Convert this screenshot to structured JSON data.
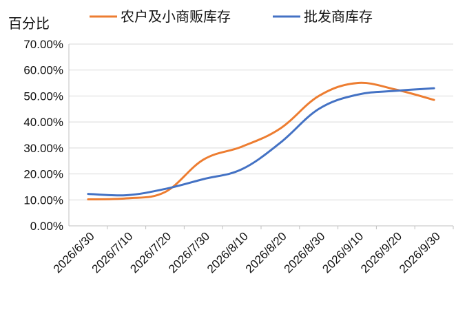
{
  "chart_data": {
    "type": "line",
    "ylabel": "百分比",
    "ylim": [
      0,
      70
    ],
    "y_tick_labels": [
      "0.00%",
      "10.00%",
      "20.00%",
      "30.00%",
      "40.00%",
      "50.00%",
      "60.00%",
      "70.00%"
    ],
    "x": [
      "2026/6/30",
      "2026/7/10",
      "2026/7/20",
      "2026/7/30",
      "2026/8/10",
      "2026/8/20",
      "2026/8/30",
      "2026/9/10",
      "2026/9/20",
      "2026/9/30"
    ],
    "legend_position": "top",
    "grid": true,
    "series": [
      {
        "name": "农户及小商贩库存",
        "color": "#ED7D31",
        "values": [
          10.2,
          10.6,
          13.0,
          25.5,
          30.5,
          37.5,
          50.0,
          55.0,
          52.5,
          48.5
        ]
      },
      {
        "name": "批发商库存",
        "color": "#4472C4",
        "values": [
          12.3,
          11.8,
          14.2,
          18.0,
          21.8,
          32.0,
          45.0,
          50.5,
          52.0,
          53.0
        ]
      }
    ]
  }
}
